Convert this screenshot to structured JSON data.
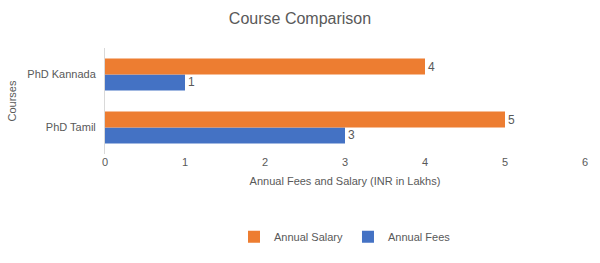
{
  "chart_data": {
    "type": "bar",
    "orientation": "horizontal",
    "title": "Course Comparison",
    "x_label": "Annual Fees and Salary (INR in Lakhs)",
    "y_label": "Courses",
    "categories": [
      "PhD Tamil",
      "PhD Kannada"
    ],
    "series": [
      {
        "name": "Annual Fees",
        "color": "#4472c4",
        "values": [
          3,
          1
        ]
      },
      {
        "name": "Annual Salary",
        "color": "#ed7d31",
        "values": [
          5,
          4
        ]
      }
    ],
    "xlim": [
      0,
      6
    ],
    "xticks": [
      0,
      1,
      2,
      3,
      4,
      5,
      6
    ],
    "grid": false,
    "legend": "bottom",
    "data_labels": true
  }
}
